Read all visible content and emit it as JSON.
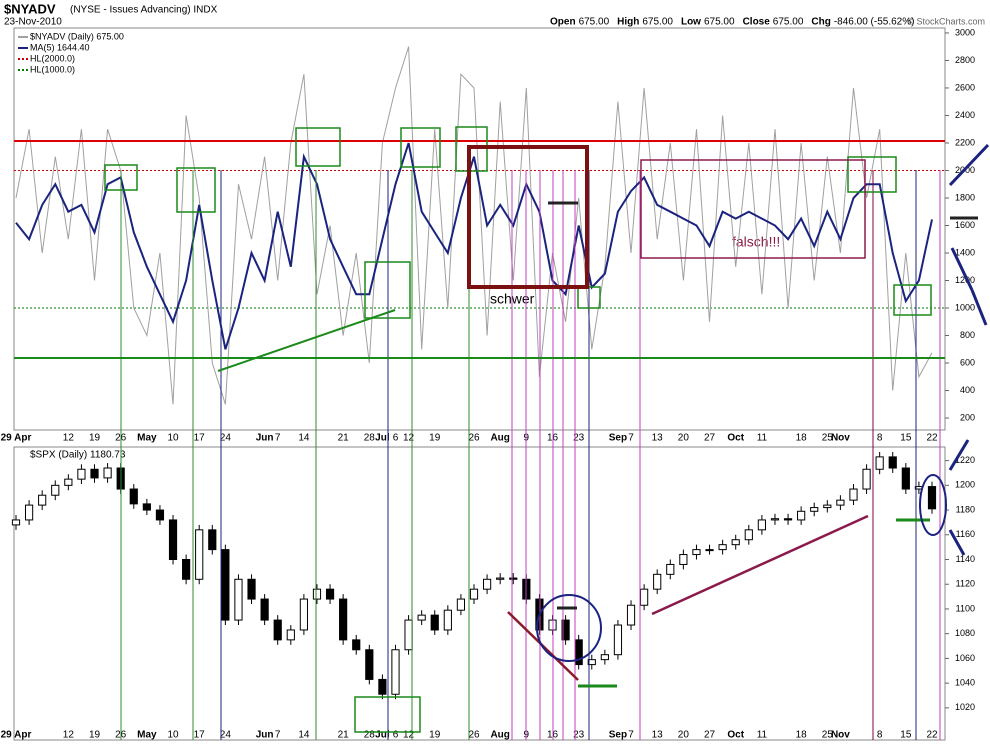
{
  "chart_data": [
    {
      "type": "line",
      "title": "$NYADV",
      "subtitle": "(NYSE - Issues Advancing) INDX",
      "date": "23-Nov-2010",
      "quote": [
        "Open",
        "675.00",
        "High",
        "675.00",
        "Low",
        "675.00",
        "Close",
        "675.00",
        "Chg",
        "-846.00 (-55.62%)"
      ],
      "credit": "© StockCharts.com",
      "categories": [
        "29 Apr",
        null,
        null,
        null,
        "12",
        null,
        "19",
        null,
        "26",
        null,
        "May",
        null,
        "10",
        null,
        "17",
        null,
        "24",
        null,
        null,
        "Jun",
        "7",
        null,
        "14",
        null,
        null,
        "21",
        null,
        "28",
        "Jul",
        "6",
        "12",
        null,
        "19",
        null,
        null,
        "26",
        null,
        "Aug",
        null,
        "9",
        null,
        "16",
        null,
        "23",
        null,
        null,
        "Sep",
        "7",
        null,
        "13",
        null,
        "20",
        null,
        "27",
        null,
        "Oct",
        null,
        "11",
        null,
        null,
        "18",
        null,
        "25",
        "Nov",
        null,
        null,
        "8",
        null,
        "15",
        null,
        "22"
      ],
      "series": [
        {
          "name": "$NYADV (Daily) 675.00",
          "color": "#a0a0a0",
          "values": [
            1800,
            2300,
            1400,
            2100,
            1500,
            2300,
            1200,
            2300,
            2000,
            1000,
            800,
            1400,
            300,
            2400,
            1800,
            600,
            300,
            1900,
            1500,
            2100,
            1200,
            2200,
            2700,
            1100,
            1600,
            800,
            1400,
            600,
            2200,
            2600,
            2900,
            700,
            2300,
            1000,
            2700,
            2600,
            800,
            2500,
            1200,
            2600,
            500,
            1400,
            900,
            1800,
            700,
            1300,
            2500,
            1400,
            2600,
            1500,
            2200,
            1200,
            2300,
            900,
            2400,
            1300,
            2200,
            1100,
            2300,
            1000,
            2200,
            1200,
            2100,
            1400,
            2600,
            1800,
            2300,
            400,
            1400,
            500,
            675
          ]
        },
        {
          "name": "MA(5) 1644.40",
          "color": "#1a237e",
          "values": [
            1620,
            1500,
            1750,
            1900,
            1700,
            1750,
            1550,
            1900,
            1950,
            1550,
            1300,
            1100,
            900,
            1200,
            1750,
            1200,
            700,
            1000,
            1400,
            1200,
            1700,
            1300,
            2100,
            1900,
            1500,
            1300,
            1100,
            1100,
            1500,
            1900,
            2200,
            1700,
            1550,
            1400,
            1800,
            2100,
            1600,
            1750,
            1600,
            1900,
            1700,
            1200,
            1100,
            1600,
            1150,
            1250,
            1700,
            1850,
            1950,
            1750,
            1700,
            1650,
            1600,
            1450,
            1700,
            1650,
            1700,
            1650,
            1600,
            1500,
            1650,
            1450,
            1700,
            1500,
            1800,
            1900,
            1900,
            1400,
            1050,
            1200,
            1644
          ]
        }
      ],
      "hlines": [
        {
          "name": "HL(2000.0)",
          "value": 2000,
          "color": "#cc0000"
        },
        {
          "name": "HL(1000.0)",
          "value": 1000,
          "color": "#007700"
        }
      ],
      "annotations": [
        "schwer",
        "falsch!!!"
      ],
      "ylim": [
        113,
        3036
      ],
      "yticks": [
        200,
        400,
        600,
        800,
        1000,
        1200,
        1400,
        1600,
        1800,
        2000,
        2200,
        2400,
        2600,
        2800,
        3000
      ]
    },
    {
      "type": "candlestick",
      "title": "$SPX (Daily) 1180.73",
      "open": [
        1168,
        1172,
        1184,
        1192,
        1200,
        1205,
        1213,
        1206,
        1214,
        1197,
        1185,
        1180,
        1172,
        1140,
        1124,
        1164,
        1148,
        1091,
        1124,
        1108,
        1091,
        1075,
        1083,
        1108,
        1116,
        1108,
        1075,
        1067,
        1043,
        1031,
        1067,
        1091,
        1095,
        1083,
        1099,
        1108,
        1116,
        1124,
        1125,
        1124,
        1108,
        1083,
        1091,
        1075,
        1055,
        1059,
        1063,
        1087,
        1103,
        1116,
        1128,
        1136,
        1144,
        1148,
        1148,
        1152,
        1156,
        1164,
        1172,
        1173,
        1172,
        1179,
        1182,
        1184,
        1188,
        1197,
        1213,
        1223,
        1214,
        1197,
        1199
      ],
      "high": [
        1176,
        1188,
        1196,
        1204,
        1209,
        1217,
        1217,
        1218,
        1218,
        1201,
        1189,
        1184,
        1176,
        1144,
        1168,
        1168,
        1152,
        1128,
        1128,
        1112,
        1095,
        1087,
        1112,
        1120,
        1120,
        1112,
        1079,
        1071,
        1047,
        1071,
        1095,
        1099,
        1099,
        1103,
        1112,
        1120,
        1128,
        1129,
        1129,
        1128,
        1112,
        1095,
        1095,
        1079,
        1063,
        1067,
        1091,
        1107,
        1120,
        1132,
        1140,
        1148,
        1152,
        1152,
        1156,
        1160,
        1168,
        1176,
        1177,
        1177,
        1183,
        1186,
        1188,
        1192,
        1201,
        1217,
        1227,
        1227,
        1218,
        1203,
        1203
      ],
      "low": [
        1164,
        1168,
        1180,
        1188,
        1196,
        1201,
        1202,
        1202,
        1193,
        1181,
        1176,
        1168,
        1136,
        1120,
        1120,
        1144,
        1087,
        1087,
        1104,
        1087,
        1071,
        1071,
        1079,
        1104,
        1104,
        1071,
        1063,
        1039,
        1027,
        1027,
        1063,
        1087,
        1079,
        1079,
        1095,
        1104,
        1112,
        1120,
        1120,
        1104,
        1079,
        1079,
        1071,
        1051,
        1051,
        1055,
        1059,
        1083,
        1099,
        1112,
        1124,
        1132,
        1140,
        1144,
        1144,
        1148,
        1152,
        1160,
        1168,
        1168,
        1168,
        1175,
        1178,
        1180,
        1184,
        1193,
        1209,
        1210,
        1193,
        1193,
        1177
      ],
      "close": [
        1172,
        1184,
        1192,
        1200,
        1205,
        1213,
        1206,
        1214,
        1197,
        1185,
        1180,
        1172,
        1140,
        1124,
        1164,
        1148,
        1091,
        1124,
        1108,
        1091,
        1075,
        1083,
        1108,
        1116,
        1108,
        1075,
        1067,
        1043,
        1031,
        1067,
        1091,
        1095,
        1083,
        1099,
        1108,
        1116,
        1124,
        1125,
        1124,
        1108,
        1083,
        1091,
        1075,
        1055,
        1059,
        1063,
        1087,
        1103,
        1116,
        1128,
        1136,
        1144,
        1148,
        1148,
        1152,
        1156,
        1164,
        1172,
        1173,
        1172,
        1179,
        1182,
        1184,
        1188,
        1197,
        1213,
        1223,
        1214,
        1197,
        1199,
        1181
      ],
      "ylim": [
        994,
        1231
      ],
      "yticks": [
        1020,
        1040,
        1060,
        1080,
        1100,
        1120,
        1140,
        1160,
        1180,
        1200,
        1220
      ]
    }
  ]
}
